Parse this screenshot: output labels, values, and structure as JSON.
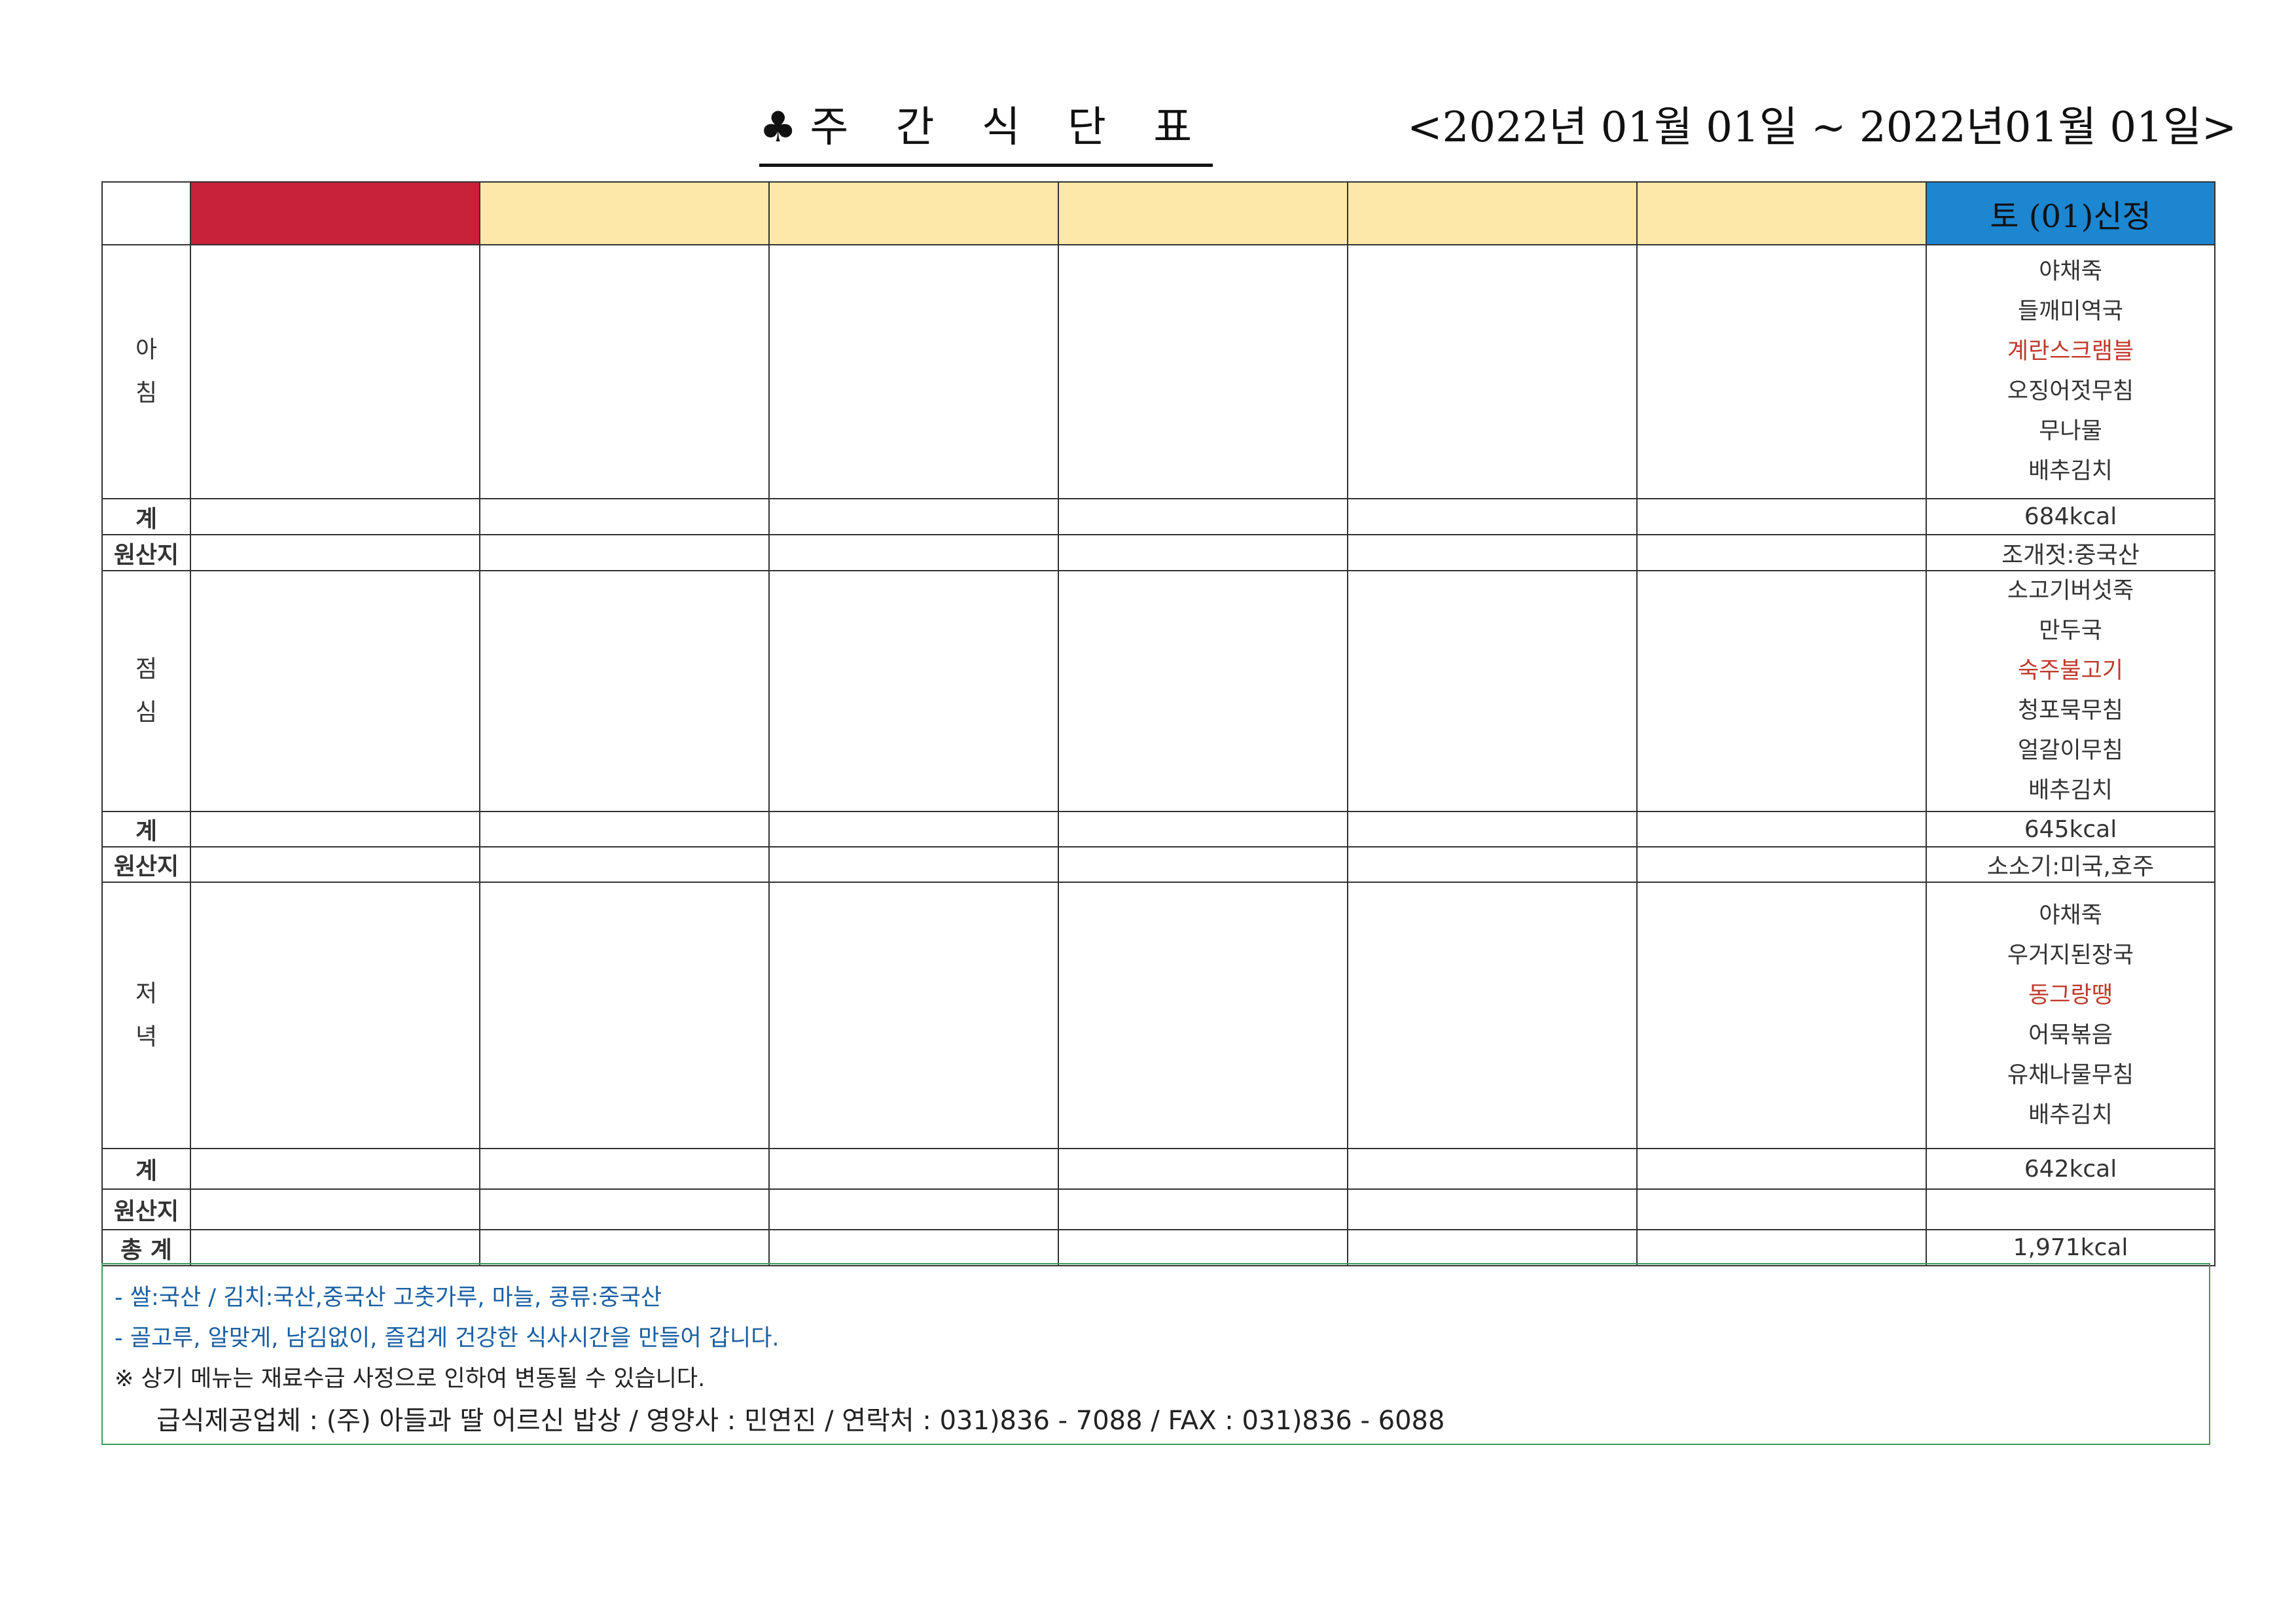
{
  "header": {
    "club_icon": "♣",
    "title": "주 간 식 단 표",
    "date_range": "<2022년 01월 01일 ~ 2022년01월 01일>"
  },
  "colors": {
    "day_header_1": "#c8223b",
    "day_header_other": "#fde7a9",
    "day_header_saturday": "#1c86d0",
    "highlight_dish": "#c0392b",
    "note_border": "#3c9b5d"
  },
  "table": {
    "saturday_header": "토 (01)신정",
    "breakfast": {
      "label_1": "아",
      "label_2": "침",
      "dishes": [
        "야채죽",
        "들깨미역국",
        "계란스크램블",
        "오징어젓무침",
        "무나물",
        "배추김치"
      ],
      "highlight_index": 2,
      "total_label": "계",
      "total": "684kcal",
      "origin_label": "원산지",
      "origin": "조개젓:중국산"
    },
    "lunch": {
      "label_1": "점",
      "label_2": "심",
      "dishes": [
        "소고기버섯죽",
        "만두국",
        "숙주불고기",
        "청포묵무침",
        "얼갈이무침",
        "배추김치"
      ],
      "highlight_index": 2,
      "total_label": "계",
      "total": "645kcal",
      "origin_label": "원산지",
      "origin": "소소기:미국,호주"
    },
    "dinner": {
      "label_1": "저",
      "label_2": "녁",
      "dishes": [
        "야채죽",
        "우거지된장국",
        "동그랑땡",
        "어묵볶음",
        "유채나물무침",
        "배추김치"
      ],
      "highlight_index": 2,
      "total_label": "계",
      "total": "642kcal",
      "origin_label": "원산지",
      "origin": ""
    },
    "grand_total_label": "총 계",
    "grand_total": "1,971kcal"
  },
  "notes": {
    "line1": "- 쌀:국산 / 김치:국산,중국산 고춧가루, 마늘, 콩류:중국산",
    "line2": "- 골고루, 알맞게, 남김없이, 즐겁게 건강한 식사시간을 만들어 갑니다.",
    "line3": "※ 상기 메뉴는 재료수급 사정으로 인하여 변동될 수 있습니다.",
    "line4": "급식제공업체 : (주) 아들과 딸   어르신 밥상  /  영양사 : 민연진   /  연락처 : 031)836 - 7088  /  FAX : 031)836 - 6088"
  }
}
